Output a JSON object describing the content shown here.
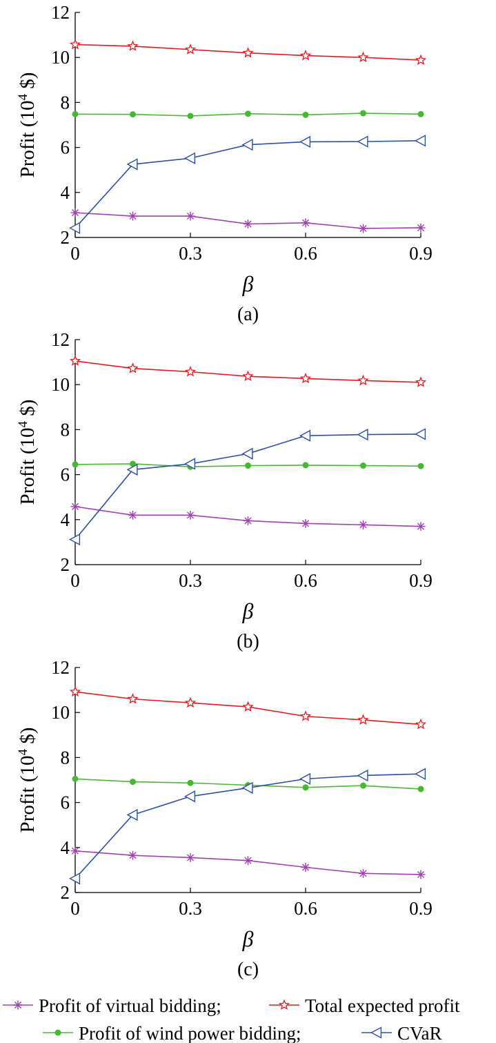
{
  "chart_data": [
    {
      "type": "line",
      "caption": "(a)",
      "xlabel": "β",
      "ylabel_main": "Profit (10",
      "ylabel_sup": "4",
      "ylabel_end": " $)",
      "xlim": [
        0,
        0.9
      ],
      "ylim": [
        2,
        12
      ],
      "xticks": [
        "0",
        "0.3",
        "0.6",
        "0.9"
      ],
      "yticks": [
        "2",
        "4",
        "6",
        "8",
        "10",
        "12"
      ],
      "x": [
        0,
        0.15,
        0.3,
        0.45,
        0.6,
        0.75,
        0.9
      ],
      "series": [
        {
          "key": "virtual",
          "values": [
            3.1,
            2.95,
            2.95,
            2.6,
            2.65,
            2.4,
            2.43
          ]
        },
        {
          "key": "total",
          "values": [
            10.57,
            10.5,
            10.35,
            10.2,
            10.08,
            10.0,
            9.88
          ]
        },
        {
          "key": "wind",
          "values": [
            7.48,
            7.47,
            7.4,
            7.5,
            7.45,
            7.52,
            7.48
          ]
        },
        {
          "key": "cvar",
          "values": [
            2.42,
            5.25,
            5.52,
            6.12,
            6.25,
            6.26,
            6.3
          ]
        }
      ]
    },
    {
      "type": "line",
      "caption": "(b)",
      "xlabel": "β",
      "ylabel_main": "Profit (10",
      "ylabel_sup": "4",
      "ylabel_end": " $)",
      "xlim": [
        0,
        0.9
      ],
      "ylim": [
        2,
        12
      ],
      "xticks": [
        "0",
        "0.3",
        "0.6",
        "0.9"
      ],
      "yticks": [
        "2",
        "4",
        "6",
        "8",
        "10",
        "12"
      ],
      "x": [
        0,
        0.15,
        0.3,
        0.45,
        0.6,
        0.75,
        0.9
      ],
      "series": [
        {
          "key": "virtual",
          "values": [
            4.58,
            4.2,
            4.2,
            3.95,
            3.83,
            3.77,
            3.7
          ]
        },
        {
          "key": "total",
          "values": [
            11.05,
            10.72,
            10.57,
            10.37,
            10.27,
            10.18,
            10.1
          ]
        },
        {
          "key": "wind",
          "values": [
            6.45,
            6.48,
            6.35,
            6.4,
            6.42,
            6.4,
            6.38
          ]
        },
        {
          "key": "cvar",
          "values": [
            3.12,
            6.22,
            6.48,
            6.93,
            7.73,
            7.78,
            7.8
          ]
        }
      ]
    },
    {
      "type": "line",
      "caption": "(c)",
      "xlabel": "β",
      "ylabel_main": "Profit (10",
      "ylabel_sup": "4",
      "ylabel_end": " $)",
      "xlim": [
        0,
        0.9
      ],
      "ylim": [
        2,
        12
      ],
      "xticks": [
        "0",
        "0.3",
        "0.6",
        "0.9"
      ],
      "yticks": [
        "2",
        "4",
        "6",
        "8",
        "10",
        "12"
      ],
      "x": [
        0,
        0.15,
        0.3,
        0.45,
        0.6,
        0.75,
        0.9
      ],
      "series": [
        {
          "key": "virtual",
          "values": [
            3.85,
            3.65,
            3.55,
            3.42,
            3.12,
            2.85,
            2.8
          ]
        },
        {
          "key": "total",
          "values": [
            10.92,
            10.6,
            10.43,
            10.25,
            9.83,
            9.67,
            9.47
          ]
        },
        {
          "key": "wind",
          "values": [
            7.05,
            6.92,
            6.87,
            6.77,
            6.67,
            6.75,
            6.6
          ]
        },
        {
          "key": "cvar",
          "values": [
            2.62,
            5.45,
            6.27,
            6.65,
            7.05,
            7.2,
            7.27
          ]
        }
      ]
    }
  ],
  "legend": {
    "virtual": {
      "label": "Profit of virtual bidding;",
      "color": "#a040b0",
      "marker": "asterisk"
    },
    "total": {
      "label": "Total expected profit",
      "color": "#e8161e",
      "marker": "star"
    },
    "wind": {
      "label": "Profit of wind power bidding;",
      "color": "#46b832",
      "marker": "dot"
    },
    "cvar": {
      "label": "CVaR",
      "color": "#2b4fa3",
      "marker": "triangle-left"
    }
  }
}
